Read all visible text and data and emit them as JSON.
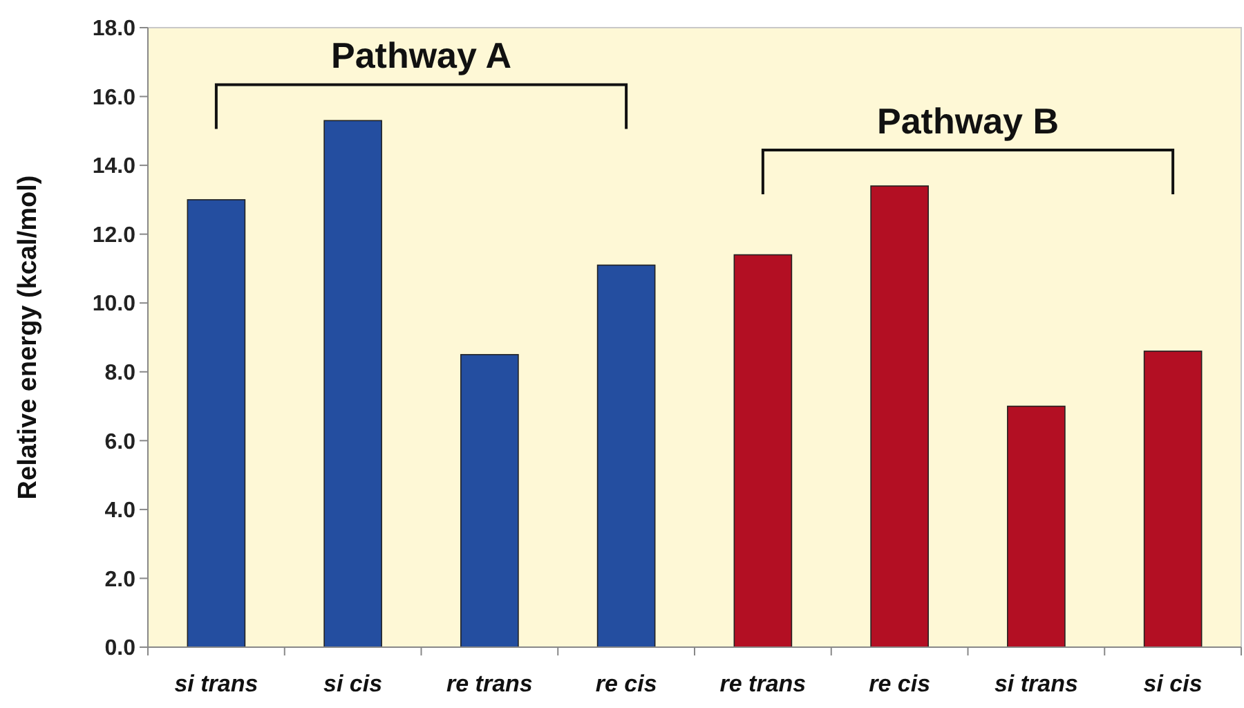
{
  "chart_data": {
    "type": "bar",
    "ylabel": "Relative energy (kcal/mol)",
    "categories": [
      "si trans",
      "si cis",
      "re trans",
      "re cis",
      "re trans",
      "re cis",
      "si trans",
      "si cis"
    ],
    "values": [
      13.0,
      15.3,
      8.5,
      11.1,
      11.4,
      13.4,
      7.0,
      8.6
    ],
    "colors": [
      "#244ea0",
      "#244ea0",
      "#244ea0",
      "#244ea0",
      "#b30f23",
      "#b30f23",
      "#b30f23",
      "#b30f23"
    ],
    "ylim": [
      0,
      18
    ],
    "yticks": [
      {
        "value": 0,
        "label": "0.0"
      },
      {
        "value": 2,
        "label": "2.0"
      },
      {
        "value": 4,
        "label": "4.0"
      },
      {
        "value": 6,
        "label": "6.0"
      },
      {
        "value": 8,
        "label": "8.0"
      },
      {
        "value": 10,
        "label": "10.0"
      },
      {
        "value": 12,
        "label": "12.0"
      },
      {
        "value": 14,
        "label": "14.0"
      },
      {
        "value": 16,
        "label": "16.0"
      },
      {
        "value": 18,
        "label": "18.0"
      }
    ],
    "annotations": [
      "Pathway A",
      "Pathway B"
    ]
  }
}
